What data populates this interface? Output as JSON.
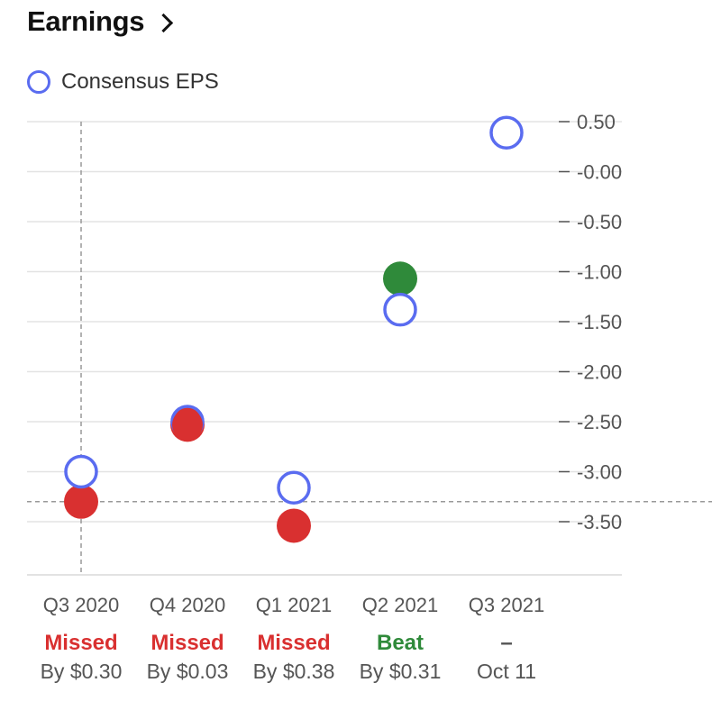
{
  "header": {
    "title": "Earnings"
  },
  "legend": {
    "label": "Consensus EPS"
  },
  "colors": {
    "consensus": "#5a6cf0",
    "missed": "#d93030",
    "beat": "#2f8a3a",
    "grid": "#e3e3e3",
    "crosshair": "#999999"
  },
  "chart_data": {
    "type": "scatter",
    "categories": [
      "Q3 2020",
      "Q4 2020",
      "Q1 2021",
      "Q2 2021",
      "Q3 2021"
    ],
    "yticks": [
      "0.50",
      "-0.00",
      "-0.50",
      "-1.00",
      "-1.50",
      "-2.00",
      "-2.50",
      "-3.00",
      "-3.50"
    ],
    "ylim": [
      -4.0,
      0.5
    ],
    "series": [
      {
        "name": "Consensus EPS",
        "values": [
          -3.0,
          -2.5,
          -3.16,
          -1.38,
          0.39
        ]
      },
      {
        "values": [
          -3.3,
          -2.53,
          -3.54,
          -1.07,
          null
        ]
      }
    ],
    "results": [
      {
        "status": "Missed",
        "detail": "By $0.30"
      },
      {
        "status": "Missed",
        "detail": "By $0.03"
      },
      {
        "status": "Missed",
        "detail": "By $0.38"
      },
      {
        "status": "Beat",
        "detail": "By $0.31"
      },
      {
        "status": "–",
        "detail": "Oct 11"
      }
    ],
    "crosshair": {
      "category": "Q3 2020",
      "y": -3.3
    },
    "grid": true
  }
}
